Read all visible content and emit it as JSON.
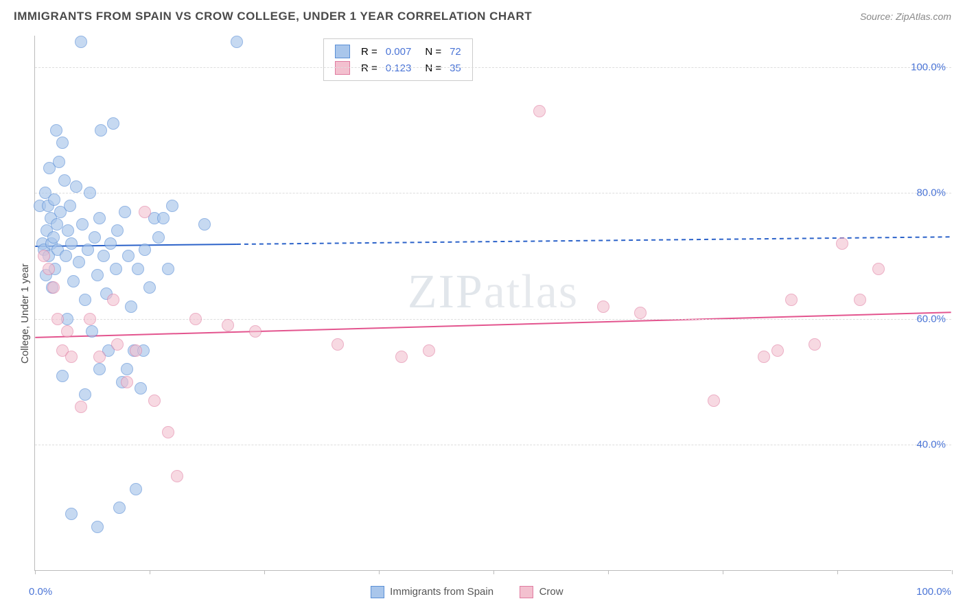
{
  "title": "IMMIGRANTS FROM SPAIN VS CROW COLLEGE, UNDER 1 YEAR CORRELATION CHART",
  "source": "Source: ZipAtlas.com",
  "ylabel": "College, Under 1 year",
  "watermark": {
    "bold": "ZIP",
    "thin": "atlas"
  },
  "chart": {
    "type": "scatter",
    "background_color": "#ffffff",
    "grid_color": "#dddddd",
    "axis_color": "#bbbbbb",
    "label_color": "#4a74d6",
    "text_color": "#4a4a4a",
    "title_fontsize": 17,
    "label_fontsize": 15,
    "tick_fontsize": 15,
    "xlim": [
      0,
      100
    ],
    "ylim": [
      20,
      105
    ],
    "yticks": [
      40,
      60,
      80,
      100
    ],
    "ytick_labels": [
      "40.0%",
      "60.0%",
      "80.0%",
      "100.0%"
    ],
    "xtick_positions": [
      0,
      12.5,
      25,
      37.5,
      50,
      62.5,
      75,
      87.5,
      100
    ],
    "x_axis_labels": {
      "left": "0.0%",
      "right": "100.0%"
    },
    "marker_radius": 9,
    "marker_stroke_width": 1.5,
    "series": [
      {
        "name": "Immigrants from Spain",
        "fill": "#a9c6eb",
        "stroke": "#5a8fd6",
        "fill_opacity": 0.65,
        "r_label": "R =",
        "r_value": "0.007",
        "n_label": "N =",
        "n_value": "72",
        "trend": {
          "y_start": 71.5,
          "y_end": 73.0,
          "solid_until_x": 22,
          "stroke": "#2b62c9",
          "stroke_width": 2,
          "dash": "6,5"
        },
        "points": [
          [
            0.5,
            78
          ],
          [
            0.8,
            72
          ],
          [
            1.0,
            71
          ],
          [
            1.1,
            80
          ],
          [
            1.2,
            67
          ],
          [
            1.3,
            74
          ],
          [
            1.4,
            78
          ],
          [
            1.5,
            70
          ],
          [
            1.6,
            84
          ],
          [
            1.7,
            76
          ],
          [
            1.8,
            72
          ],
          [
            1.9,
            65
          ],
          [
            2.0,
            73
          ],
          [
            2.1,
            79
          ],
          [
            2.2,
            68
          ],
          [
            2.3,
            90
          ],
          [
            2.4,
            75
          ],
          [
            2.5,
            71
          ],
          [
            2.6,
            85
          ],
          [
            2.8,
            77
          ],
          [
            3.0,
            88
          ],
          [
            3.2,
            82
          ],
          [
            3.4,
            70
          ],
          [
            3.5,
            60
          ],
          [
            3.6,
            74
          ],
          [
            3.8,
            78
          ],
          [
            4.0,
            72
          ],
          [
            4.2,
            66
          ],
          [
            4.5,
            81
          ],
          [
            4.8,
            69
          ],
          [
            5.0,
            104
          ],
          [
            5.2,
            75
          ],
          [
            5.5,
            63
          ],
          [
            5.8,
            71
          ],
          [
            6.0,
            80
          ],
          [
            6.2,
            58
          ],
          [
            6.5,
            73
          ],
          [
            6.8,
            67
          ],
          [
            7.0,
            76
          ],
          [
            7.2,
            90
          ],
          [
            7.5,
            70
          ],
          [
            7.8,
            64
          ],
          [
            8.0,
            55
          ],
          [
            8.2,
            72
          ],
          [
            8.5,
            91
          ],
          [
            8.8,
            68
          ],
          [
            9.0,
            74
          ],
          [
            9.2,
            30
          ],
          [
            9.5,
            50
          ],
          [
            9.8,
            77
          ],
          [
            10.0,
            52
          ],
          [
            10.2,
            70
          ],
          [
            10.5,
            62
          ],
          [
            10.8,
            55
          ],
          [
            11.0,
            33
          ],
          [
            11.2,
            68
          ],
          [
            11.5,
            49
          ],
          [
            11.8,
            55
          ],
          [
            12.0,
            71
          ],
          [
            12.5,
            65
          ],
          [
            13.0,
            76
          ],
          [
            13.5,
            73
          ],
          [
            14.0,
            76
          ],
          [
            14.5,
            68
          ],
          [
            15.0,
            78
          ],
          [
            4.0,
            29
          ],
          [
            18.5,
            75
          ],
          [
            6.8,
            27
          ],
          [
            22.0,
            104
          ],
          [
            3.0,
            51
          ],
          [
            5.5,
            48
          ],
          [
            7.0,
            52
          ]
        ]
      },
      {
        "name": "Crow",
        "fill": "#f3c0cf",
        "stroke": "#e07ba0",
        "fill_opacity": 0.6,
        "r_label": "R =",
        "r_value": "0.123",
        "n_label": "N =",
        "n_value": "35",
        "trend": {
          "y_start": 57.0,
          "y_end": 61.0,
          "solid_until_x": 100,
          "stroke": "#e3548e",
          "stroke_width": 2,
          "dash": ""
        },
        "points": [
          [
            1.0,
            70
          ],
          [
            1.5,
            68
          ],
          [
            2.0,
            65
          ],
          [
            2.5,
            60
          ],
          [
            3.0,
            55
          ],
          [
            3.5,
            58
          ],
          [
            4.0,
            54
          ],
          [
            5.0,
            46
          ],
          [
            6.0,
            60
          ],
          [
            7.0,
            54
          ],
          [
            8.5,
            63
          ],
          [
            9.0,
            56
          ],
          [
            10.0,
            50
          ],
          [
            11.0,
            55
          ],
          [
            12.0,
            77
          ],
          [
            13.0,
            47
          ],
          [
            14.5,
            42
          ],
          [
            15.5,
            35
          ],
          [
            17.5,
            60
          ],
          [
            21.0,
            59
          ],
          [
            24.0,
            58
          ],
          [
            33.0,
            56
          ],
          [
            40.0,
            54
          ],
          [
            43.0,
            55
          ],
          [
            55.0,
            93
          ],
          [
            62.0,
            62
          ],
          [
            74.0,
            47
          ],
          [
            79.5,
            54
          ],
          [
            81.0,
            55
          ],
          [
            82.5,
            63
          ],
          [
            85.0,
            56
          ],
          [
            88.0,
            72
          ],
          [
            90.0,
            63
          ],
          [
            92.0,
            68
          ],
          [
            66.0,
            61
          ]
        ]
      }
    ]
  },
  "legend_top": {
    "r_color": "#4a74d6",
    "n_color": "#4a74d6",
    "text_color": "#555555"
  },
  "legend_bottom": {
    "items": [
      {
        "label": "Immigrants from Spain",
        "fill": "#a9c6eb",
        "stroke": "#5a8fd6"
      },
      {
        "label": "Crow",
        "fill": "#f3c0cf",
        "stroke": "#e07ba0"
      }
    ]
  }
}
